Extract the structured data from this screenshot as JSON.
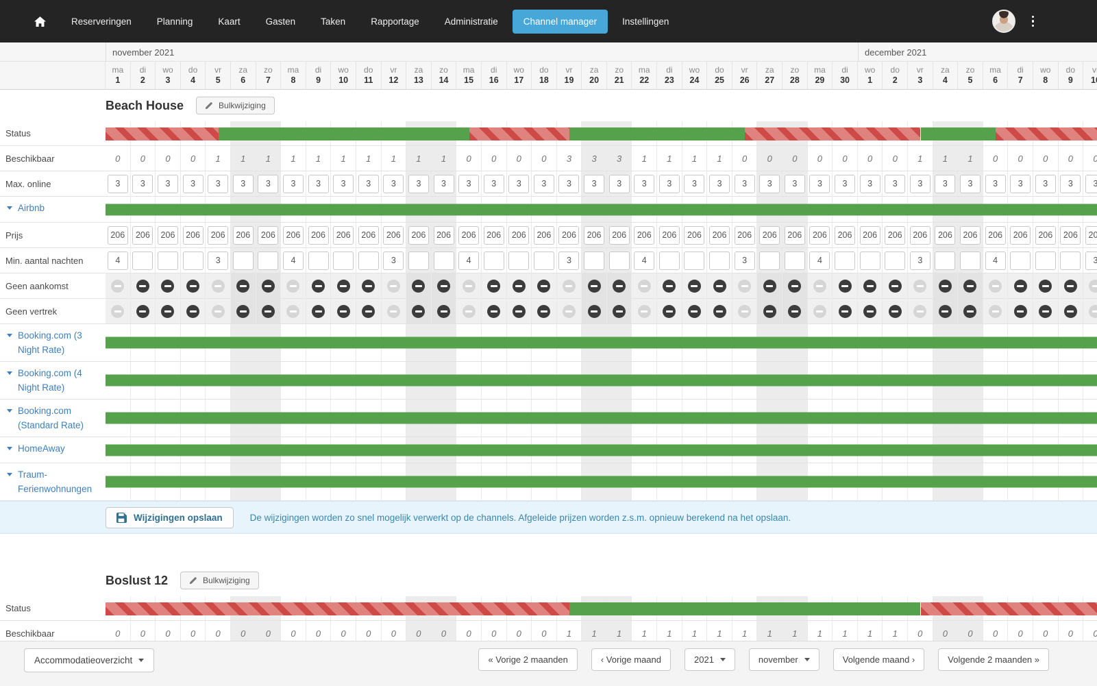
{
  "nav": {
    "items": [
      "Reserveringen",
      "Planning",
      "Kaart",
      "Gasten",
      "Taken",
      "Rapportage",
      "Administratie",
      "Channel manager",
      "Instellingen"
    ],
    "active_item": "Channel manager"
  },
  "calendar": {
    "months": [
      {
        "label": "november 2021",
        "span": 30
      },
      {
        "label": "december 2021",
        "span": 10
      }
    ],
    "days": [
      {
        "dow": "ma",
        "num": "1"
      },
      {
        "dow": "di",
        "num": "2"
      },
      {
        "dow": "wo",
        "num": "3"
      },
      {
        "dow": "do",
        "num": "4"
      },
      {
        "dow": "vr",
        "num": "5"
      },
      {
        "dow": "za",
        "num": "6"
      },
      {
        "dow": "zo",
        "num": "7"
      },
      {
        "dow": "ma",
        "num": "8"
      },
      {
        "dow": "di",
        "num": "9"
      },
      {
        "dow": "wo",
        "num": "10"
      },
      {
        "dow": "do",
        "num": "11"
      },
      {
        "dow": "vr",
        "num": "12"
      },
      {
        "dow": "za",
        "num": "13"
      },
      {
        "dow": "zo",
        "num": "14"
      },
      {
        "dow": "ma",
        "num": "15"
      },
      {
        "dow": "di",
        "num": "16"
      },
      {
        "dow": "wo",
        "num": "17"
      },
      {
        "dow": "do",
        "num": "18"
      },
      {
        "dow": "vr",
        "num": "19"
      },
      {
        "dow": "za",
        "num": "20"
      },
      {
        "dow": "zo",
        "num": "21"
      },
      {
        "dow": "ma",
        "num": "22"
      },
      {
        "dow": "di",
        "num": "23"
      },
      {
        "dow": "wo",
        "num": "24"
      },
      {
        "dow": "do",
        "num": "25"
      },
      {
        "dow": "vr",
        "num": "26"
      },
      {
        "dow": "za",
        "num": "27"
      },
      {
        "dow": "zo",
        "num": "28"
      },
      {
        "dow": "ma",
        "num": "29"
      },
      {
        "dow": "di",
        "num": "30"
      },
      {
        "dow": "wo",
        "num": "1"
      },
      {
        "dow": "do",
        "num": "2"
      },
      {
        "dow": "vr",
        "num": "3"
      },
      {
        "dow": "za",
        "num": "4"
      },
      {
        "dow": "zo",
        "num": "5"
      },
      {
        "dow": "ma",
        "num": "6"
      },
      {
        "dow": "di",
        "num": "7"
      },
      {
        "dow": "wo",
        "num": "8"
      },
      {
        "dow": "do",
        "num": "9"
      },
      {
        "dow": "vr",
        "num": "10"
      }
    ]
  },
  "colors": {
    "nav_bg": "#242424",
    "accent_blue": "#47a7d8",
    "channel_blue": "#3f7fbe",
    "free_green": "#55a14c",
    "booked_red_dark": "#cd4a47",
    "booked_red_light": "#e0837f",
    "info_blue_text": "#3a87ad"
  },
  "accommodations": [
    {
      "name": "Beach House",
      "bulk_button_label": "Bulkwijziging",
      "rows": [
        {
          "kind": "status",
          "id": "status",
          "label": "Status",
          "segments": [
            {
              "state": "booked",
              "from": 0,
              "to": 4.5
            },
            {
              "state": "free",
              "from": 4.5,
              "to": 14.5
            },
            {
              "state": "booked",
              "from": 14.5,
              "to": 18.5
            },
            {
              "state": "free",
              "from": 18.5,
              "to": 25.5
            },
            {
              "state": "booked",
              "from": 25.5,
              "to": 32.5
            },
            {
              "state": "free",
              "from": 32.5,
              "to": 35.5
            },
            {
              "state": "booked",
              "from": 35.5,
              "to": 40
            }
          ]
        },
        {
          "kind": "avail",
          "id": "beschikbaar",
          "label": "Beschikbaar",
          "values": [
            "0",
            "0",
            "0",
            "0",
            "1",
            "1",
            "1",
            "1",
            "1",
            "1",
            "1",
            "1",
            "1",
            "1",
            "0",
            "0",
            "0",
            "0",
            "3",
            "3",
            "3",
            "1",
            "1",
            "1",
            "1",
            "0",
            "0",
            "0",
            "0",
            "0",
            "0",
            "0",
            "1",
            "1",
            "1",
            "0",
            "0",
            "0",
            "0",
            "0"
          ]
        },
        {
          "kind": "inputs",
          "id": "max-online",
          "label": "Max. online",
          "input_name": "max-online-input",
          "values": [
            "3",
            "3",
            "3",
            "3",
            "3",
            "3",
            "3",
            "3",
            "3",
            "3",
            "3",
            "3",
            "3",
            "3",
            "3",
            "3",
            "3",
            "3",
            "3",
            "3",
            "3",
            "3",
            "3",
            "3",
            "3",
            "3",
            "3",
            "3",
            "3",
            "3",
            "3",
            "3",
            "3",
            "3",
            "3",
            "3",
            "3",
            "3",
            "3",
            "3"
          ]
        },
        {
          "kind": "channel",
          "id": "channel-airbnb",
          "label": "Airbnb"
        },
        {
          "kind": "inputs",
          "id": "prijs",
          "label": "Prijs",
          "input_name": "price-input",
          "values": [
            "206",
            "206",
            "206",
            "206",
            "206",
            "206",
            "206",
            "206",
            "206",
            "206",
            "206",
            "206",
            "206",
            "206",
            "206",
            "206",
            "206",
            "206",
            "206",
            "206",
            "206",
            "206",
            "206",
            "206",
            "206",
            "206",
            "206",
            "206",
            "206",
            "206",
            "206",
            "206",
            "206",
            "206",
            "206",
            "206",
            "206",
            "206",
            "206",
            "206"
          ]
        },
        {
          "kind": "inputs",
          "id": "min-nachten",
          "label": "Min. aantal nachten",
          "input_name": "min-nights-input",
          "values": [
            "4",
            "",
            "",
            "",
            "3",
            "",
            "",
            "4",
            "",
            "",
            "",
            "3",
            "",
            "",
            "4",
            "",
            "",
            "",
            "3",
            "",
            "",
            "4",
            "",
            "",
            "",
            "3",
            "",
            "",
            "4",
            "",
            "",
            "",
            "3",
            "",
            "",
            "4",
            "",
            "",
            "",
            "3"
          ]
        },
        {
          "kind": "icons",
          "id": "geen-aankomst",
          "label": "Geen aankomst",
          "icon_name": "no-arrival-icon",
          "states": [
            "L",
            "D",
            "D",
            "D",
            "L",
            "D",
            "D",
            "L",
            "D",
            "D",
            "D",
            "L",
            "D",
            "D",
            "L",
            "D",
            "D",
            "D",
            "L",
            "D",
            "D",
            "L",
            "D",
            "D",
            "D",
            "L",
            "D",
            "D",
            "L",
            "D",
            "D",
            "D",
            "L",
            "D",
            "D",
            "L",
            "D",
            "D",
            "D",
            "L"
          ]
        },
        {
          "kind": "icons",
          "id": "geen-vertrek",
          "label": "Geen vertrek",
          "icon_name": "no-departure-icon",
          "states": [
            "L",
            "D",
            "D",
            "D",
            "L",
            "D",
            "D",
            "L",
            "D",
            "D",
            "D",
            "L",
            "D",
            "D",
            "L",
            "D",
            "D",
            "D",
            "L",
            "D",
            "D",
            "L",
            "D",
            "D",
            "D",
            "L",
            "D",
            "D",
            "L",
            "D",
            "D",
            "D",
            "L",
            "D",
            "D",
            "L",
            "D",
            "D",
            "D",
            "L"
          ]
        },
        {
          "kind": "channel",
          "id": "channel-booking-3",
          "label": "Booking.com (3 Night Rate)"
        },
        {
          "kind": "channel",
          "id": "channel-booking-4",
          "label": "Booking.com (4 Night Rate)"
        },
        {
          "kind": "channel",
          "id": "channel-booking-standard",
          "label": "Booking.com (Standard Rate)"
        },
        {
          "kind": "channel",
          "id": "channel-homeaway",
          "label": "HomeAway"
        },
        {
          "kind": "channel",
          "id": "channel-traum",
          "label": "Traum-Ferienwohnungen"
        },
        {
          "kind": "savebar",
          "id": "savebar"
        }
      ]
    },
    {
      "name": "Boslust 12",
      "bulk_button_label": "Bulkwijziging",
      "rows": [
        {
          "kind": "status",
          "id": "status",
          "label": "Status",
          "segments": [
            {
              "state": "booked",
              "from": 0,
              "to": 18.5
            },
            {
              "state": "free",
              "from": 18.5,
              "to": 32.5
            },
            {
              "state": "booked",
              "from": 32.5,
              "to": 40
            }
          ]
        },
        {
          "kind": "avail",
          "id": "beschikbaar",
          "label": "Beschikbaar",
          "values": [
            "0",
            "0",
            "0",
            "0",
            "0",
            "0",
            "0",
            "0",
            "0",
            "0",
            "0",
            "0",
            "0",
            "0",
            "0",
            "0",
            "0",
            "0",
            "1",
            "1",
            "1",
            "1",
            "1",
            "1",
            "1",
            "1",
            "1",
            "1",
            "1",
            "1",
            "1",
            "1",
            "0",
            "0",
            "0",
            "0",
            "0",
            "0",
            "0",
            "0"
          ]
        }
      ]
    }
  ],
  "save_bar": {
    "button_label": "Wijzigingen opslaan",
    "message": "De wijzigingen worden zo snel mogelijk verwerkt op de channels. Afgeleide prijzen worden z.s.m. opnieuw berekend na het opslaan."
  },
  "footer": {
    "view_select": "Accommodatieoverzicht",
    "prev2_label": "« Vorige 2 maanden",
    "prev_label": "‹ Vorige maand",
    "year_value": "2021",
    "month_value": "november",
    "next_label": "Volgende maand ›",
    "next2_label": "Volgende 2 maanden »"
  }
}
